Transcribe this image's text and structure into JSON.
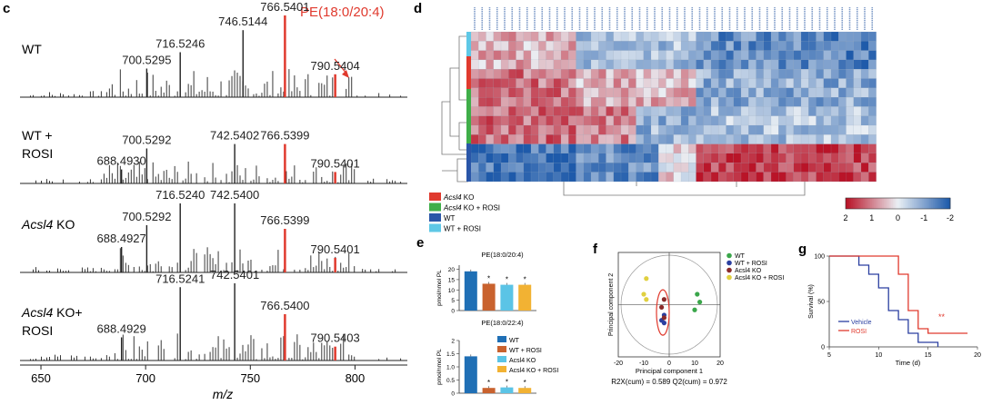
{
  "panel_c": {
    "letter": "c",
    "pe_label": "PE(18:0/20:4)",
    "xlabel": "m/z",
    "xticks": [
      "650",
      "700",
      "750",
      "800"
    ],
    "spectra": [
      {
        "label1": "WT",
        "label2": "",
        "peaks": [
          {
            "mz": 700.5295,
            "label": "700.5295",
            "h": 0.35
          },
          {
            "mz": 716.5246,
            "label": "716.5246",
            "h": 0.55
          },
          {
            "mz": 746.5144,
            "label": "746.5144",
            "h": 0.82
          },
          {
            "mz": 766.5401,
            "label": "766.5401",
            "h": 1.0,
            "red": true
          },
          {
            "mz": 790.5404,
            "label": "790.5404",
            "h": 0.28,
            "red": true
          }
        ]
      },
      {
        "label1": "WT +",
        "label2": "ROSI",
        "peaks": [
          {
            "mz": 688.493,
            "label": "688.4930",
            "h": 0.22
          },
          {
            "mz": 700.5292,
            "label": "700.5292",
            "h": 0.55
          },
          {
            "mz": 742.5402,
            "label": "742.5402",
            "h": 0.62
          },
          {
            "mz": 766.5399,
            "label": "766.5399",
            "h": 0.62,
            "red": true
          },
          {
            "mz": 790.5401,
            "label": "790.5401",
            "h": 0.18,
            "red": true
          }
        ]
      },
      {
        "label1": "Acsl4 KO",
        "label2": "",
        "peaks": [
          {
            "mz": 688.4927,
            "label": "688.4927",
            "h": 0.35
          },
          {
            "mz": 700.5292,
            "label": "700.5292",
            "h": 0.65
          },
          {
            "mz": 716.524,
            "label": "716.5240",
            "h": 0.95
          },
          {
            "mz": 742.54,
            "label": "742.5400",
            "h": 0.95
          },
          {
            "mz": 766.5399,
            "label": "766.5399",
            "h": 0.6,
            "red": true
          },
          {
            "mz": 790.5401,
            "label": "790.5401",
            "h": 0.2,
            "red": true
          }
        ]
      },
      {
        "label1": "Acsl4 KO+",
        "label2": "ROSI",
        "peaks": [
          {
            "mz": 688.4929,
            "label": "688.4929",
            "h": 0.3
          },
          {
            "mz": 716.5241,
            "label": "716.5241",
            "h": 0.95
          },
          {
            "mz": 742.5401,
            "label": "742.5401",
            "h": 1.0
          },
          {
            "mz": 766.54,
            "label": "766.5400",
            "h": 0.6,
            "red": true
          },
          {
            "mz": 790.5403,
            "label": "790.5403",
            "h": 0.18,
            "red": true
          }
        ]
      }
    ]
  },
  "panel_d": {
    "letter": "d",
    "legend": [
      {
        "label": "Acsl4 KO",
        "color": "#e03a2e"
      },
      {
        "label": "Acsl4 KO + ROSI",
        "color": "#3fae49"
      },
      {
        "label": "WT",
        "color": "#2a56a8"
      },
      {
        "label": "WT + ROSI",
        "color": "#5ec8e6"
      }
    ],
    "colorbar_ticks": [
      "2",
      "1",
      "0",
      "-1",
      "-2"
    ]
  },
  "panel_e": {
    "letter": "e",
    "chart_data": [
      {
        "type": "bar",
        "title": "PE(18:0/20:4)",
        "ylabel": "pmol/nmol PL",
        "yticks": [
          "0",
          "5",
          "10",
          "15",
          "20"
        ],
        "ylim": [
          0,
          22
        ],
        "categories": [
          "WT",
          "WT + ROSI",
          "Acsl4 KO",
          "Acsl4 KO + ROSI"
        ],
        "values": [
          19,
          13,
          12.5,
          12.5
        ],
        "marks": [
          "",
          "*",
          "*",
          "*"
        ]
      },
      {
        "type": "bar",
        "title": "PE(18:0/22:4)",
        "ylabel": "pmol/nmol PL",
        "yticks": [
          "0",
          "0.5",
          "1.0",
          "1.5",
          "2"
        ],
        "ylim": [
          0,
          2
        ],
        "categories": [
          "WT",
          "WT + ROSI",
          "Acsl4 KO",
          "Acsl4 KO + ROSI"
        ],
        "values": [
          1.4,
          0.2,
          0.22,
          0.2
        ],
        "marks": [
          "",
          "*",
          "*",
          "*"
        ]
      }
    ],
    "legend": [
      {
        "label": "WT",
        "color": "#1f6fb5"
      },
      {
        "label": "WT + ROSI",
        "color": "#c9622e"
      },
      {
        "label": "Acsl4 KO",
        "color": "#5bc4e6"
      },
      {
        "label": "Acsl4 KO + ROSI",
        "color": "#f2b233"
      }
    ]
  },
  "panel_f": {
    "letter": "f",
    "chart_data": {
      "type": "scatter",
      "xlabel": "Principal component 1",
      "ylabel": "Principal component 2",
      "xticks": [
        "-20",
        "-10",
        "0",
        "10",
        "20"
      ],
      "xlim": [
        -20,
        20
      ],
      "ylim": [
        -20,
        20
      ],
      "footnote": "R2X(cum) = 0.589 Q2(cum) = 0.972",
      "series": [
        {
          "name": "WT",
          "color": "#3aa64a",
          "points": [
            [
              11,
              4
            ],
            [
              12,
              1
            ],
            [
              10,
              -2
            ]
          ]
        },
        {
          "name": "WT + ROSI",
          "color": "#2a3fa0",
          "points": [
            [
              -2,
              -4
            ],
            [
              -3,
              -6
            ],
            [
              -2,
              -7
            ]
          ]
        },
        {
          "name": "Acsl4 KO",
          "color": "#8a2a2a",
          "points": [
            [
              -2,
              2
            ],
            [
              -3,
              -1
            ],
            [
              -2,
              -5
            ]
          ]
        },
        {
          "name": "Acsl4 KO + ROSI",
          "color": "#e0d040",
          "points": [
            [
              -9,
              10
            ],
            [
              -10,
              4
            ],
            [
              -9,
              2
            ]
          ]
        }
      ]
    }
  },
  "panel_g": {
    "letter": "g",
    "chart_data": {
      "type": "line",
      "xlabel": "Time (d)",
      "ylabel": "Survival (%)",
      "xticks": [
        "5",
        "10",
        "15",
        "20"
      ],
      "yticks": [
        "0",
        "50",
        "100"
      ],
      "xlim": [
        5,
        20
      ],
      "ylim": [
        0,
        100
      ],
      "significance": "**",
      "series": [
        {
          "name": "Vehicle",
          "color": "#2a3fa0",
          "points": [
            [
              5,
              100
            ],
            [
              8,
              100
            ],
            [
              8,
              90
            ],
            [
              9,
              90
            ],
            [
              9,
              80
            ],
            [
              10,
              80
            ],
            [
              10,
              65
            ],
            [
              11,
              65
            ],
            [
              11,
              40
            ],
            [
              12,
              40
            ],
            [
              12,
              30
            ],
            [
              13,
              30
            ],
            [
              13,
              15
            ],
            [
              14,
              15
            ],
            [
              14,
              5
            ],
            [
              16,
              5
            ],
            [
              16,
              0
            ]
          ]
        },
        {
          "name": "ROSI",
          "color": "#e03a2e",
          "points": [
            [
              5,
              100
            ],
            [
              12,
              100
            ],
            [
              12,
              80
            ],
            [
              13,
              80
            ],
            [
              13,
              40
            ],
            [
              14,
              40
            ],
            [
              14,
              20
            ],
            [
              15,
              20
            ],
            [
              15,
              15
            ],
            [
              19,
              15
            ]
          ]
        }
      ]
    }
  }
}
